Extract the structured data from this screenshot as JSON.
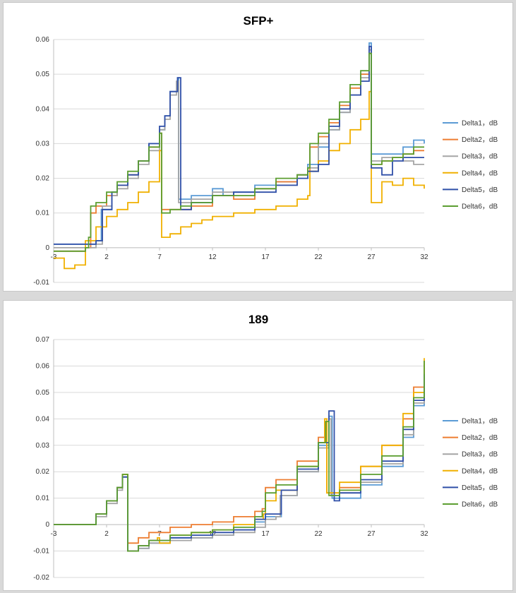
{
  "chart_data": [
    {
      "type": "line",
      "title": "SFP+",
      "xlim": [
        -3,
        32
      ],
      "ylim": [
        -0.01,
        0.06
      ],
      "xticks": [
        -3,
        2,
        7,
        12,
        17,
        22,
        27,
        32
      ],
      "yticks": [
        -0.01,
        0,
        0.01,
        0.02,
        0.03,
        0.04,
        0.05,
        0.06
      ],
      "ytick_labels": [
        "-0.01",
        "0",
        "0.01",
        "0.02",
        "0.03",
        "0.04",
        "0.05",
        "0.06"
      ],
      "xlabel": "",
      "ylabel": "",
      "grid": true,
      "legend": "right",
      "series": [
        {
          "name": "Delta1，dB",
          "color": "#5b9bd5",
          "x": [
            -3,
            0,
            1,
            1.5,
            2.5,
            3,
            4,
            5,
            6,
            7,
            7.5,
            8,
            8.7,
            8.8,
            10,
            12,
            13,
            14,
            16,
            18,
            20,
            21,
            22,
            23,
            24,
            25,
            26,
            26.8,
            27,
            28,
            29,
            30,
            31,
            32
          ],
          "y": [
            0.001,
            0.001,
            0.002,
            0.011,
            0.016,
            0.018,
            0.021,
            0.025,
            0.03,
            0.034,
            0.038,
            0.045,
            0.049,
            0.014,
            0.015,
            0.017,
            0.015,
            0.016,
            0.018,
            0.019,
            0.021,
            0.024,
            0.029,
            0.034,
            0.039,
            0.044,
            0.05,
            0.059,
            0.027,
            0.027,
            0.027,
            0.029,
            0.031,
            0.03
          ]
        },
        {
          "name": "Delta2，dB",
          "color": "#ed7d31",
          "x": [
            -3,
            0,
            0.5,
            1,
            2,
            3,
            4,
            5,
            6,
            7,
            7.2,
            8,
            9,
            10,
            12,
            14,
            16,
            18,
            20,
            21,
            21.2,
            22,
            23,
            24,
            25,
            26,
            26.8,
            27,
            28,
            29,
            30,
            31,
            32
          ],
          "y": [
            -0.001,
            0,
            0.01,
            0.012,
            0.015,
            0.018,
            0.021,
            0.025,
            0.029,
            0.033,
            0.011,
            0.011,
            0.011,
            0.012,
            0.015,
            0.014,
            0.017,
            0.019,
            0.021,
            0.022,
            0.029,
            0.032,
            0.036,
            0.041,
            0.046,
            0.05,
            0.056,
            0.024,
            0.025,
            0.026,
            0.027,
            0.028,
            0.028
          ]
        },
        {
          "name": "Delta3，dB",
          "color": "#a5a5a5",
          "x": [
            -3,
            0,
            1,
            1.6,
            2.5,
            3,
            4,
            5,
            6,
            7,
            7.5,
            8,
            8.6,
            8.8,
            10,
            12,
            14,
            16,
            18,
            20,
            21,
            22,
            23,
            24,
            25,
            26,
            26.8,
            27,
            28,
            29,
            30,
            31,
            32
          ],
          "y": [
            0,
            0,
            0.001,
            0.012,
            0.015,
            0.017,
            0.02,
            0.024,
            0.028,
            0.034,
            0.037,
            0.044,
            0.048,
            0.013,
            0.014,
            0.016,
            0.015,
            0.017,
            0.018,
            0.021,
            0.023,
            0.03,
            0.034,
            0.039,
            0.044,
            0.049,
            0.057,
            0.025,
            0.026,
            0.026,
            0.025,
            0.024,
            0.024
          ]
        },
        {
          "name": "Delta4，dB",
          "color": "#f0b000",
          "x": [
            -3,
            -2,
            -1,
            0,
            1,
            2,
            3,
            4,
            5,
            6,
            7,
            7.2,
            8,
            9,
            10,
            11,
            12,
            14,
            16,
            18,
            20,
            21,
            21.2,
            22,
            23,
            24,
            25,
            26,
            26.8,
            27,
            27.5,
            28,
            29,
            30,
            31,
            32
          ],
          "y": [
            -0.003,
            -0.006,
            -0.005,
            0.002,
            0.006,
            0.009,
            0.011,
            0.013,
            0.016,
            0.019,
            0.028,
            0.003,
            0.004,
            0.006,
            0.007,
            0.008,
            0.009,
            0.01,
            0.011,
            0.012,
            0.014,
            0.015,
            0.022,
            0.025,
            0.028,
            0.03,
            0.034,
            0.037,
            0.045,
            0.013,
            0.013,
            0.019,
            0.018,
            0.02,
            0.018,
            0.017
          ]
        },
        {
          "name": "Delta5，dB",
          "color": "#2f4fa8",
          "x": [
            -3,
            0,
            1,
            1.6,
            2.5,
            3,
            4,
            5,
            6,
            7,
            7.5,
            8,
            8.7,
            9,
            10,
            12,
            14,
            16,
            18,
            20,
            21,
            22,
            23,
            24,
            25,
            26,
            26.8,
            27,
            28,
            29,
            30,
            31,
            32
          ],
          "y": [
            0.001,
            0.001,
            0.002,
            0.011,
            0.016,
            0.018,
            0.021,
            0.025,
            0.03,
            0.035,
            0.038,
            0.045,
            0.049,
            0.011,
            0.013,
            0.015,
            0.016,
            0.016,
            0.018,
            0.02,
            0.022,
            0.024,
            0.035,
            0.04,
            0.044,
            0.048,
            0.058,
            0.023,
            0.021,
            0.025,
            0.026,
            0.026,
            0.026
          ]
        },
        {
          "name": "Delta6，dB",
          "color": "#5c9e31",
          "x": [
            -3,
            0,
            0.3,
            0.5,
            1,
            2,
            3,
            4,
            5,
            6,
            7,
            7.2,
            8,
            9,
            10,
            12,
            14,
            16,
            18,
            20,
            21,
            21.2,
            22,
            23,
            24,
            25,
            26,
            26.8,
            27,
            28,
            29,
            30,
            31,
            32
          ],
          "y": [
            -0.001,
            0,
            0.003,
            0.012,
            0.013,
            0.016,
            0.019,
            0.022,
            0.025,
            0.029,
            0.033,
            0.01,
            0.011,
            0.012,
            0.013,
            0.015,
            0.015,
            0.017,
            0.02,
            0.021,
            0.023,
            0.03,
            0.033,
            0.037,
            0.042,
            0.047,
            0.051,
            0.056,
            0.024,
            0.025,
            0.026,
            0.027,
            0.029,
            0.029
          ]
        }
      ]
    },
    {
      "type": "line",
      "title": "189",
      "xlim": [
        -3,
        32
      ],
      "ylim": [
        -0.02,
        0.07
      ],
      "xticks": [
        -3,
        2,
        7,
        12,
        17,
        22,
        27,
        32
      ],
      "yticks": [
        -0.02,
        -0.01,
        0,
        0.01,
        0.02,
        0.03,
        0.04,
        0.05,
        0.06,
        0.07
      ],
      "ytick_labels": [
        "-0.02",
        "-0.01",
        "0",
        "0.01",
        "0.02",
        "0.03",
        "0.04",
        "0.05",
        "0.06",
        "0.07"
      ],
      "xlabel": "",
      "ylabel": "",
      "grid": true,
      "legend": "right",
      "series": [
        {
          "name": "Delta1，dB",
          "color": "#5b9bd5",
          "x": [
            -3,
            0,
            1,
            2,
            3,
            3.5,
            4,
            5,
            6,
            8,
            10,
            12,
            14,
            16,
            17,
            18,
            18.5,
            20,
            22,
            23,
            23.3,
            24,
            26,
            28,
            30,
            31,
            32
          ],
          "y": [
            0,
            0,
            0.004,
            0.009,
            0.014,
            0.018,
            -0.01,
            -0.009,
            -0.007,
            -0.005,
            -0.005,
            -0.004,
            -0.002,
            0.001,
            0.003,
            0.003,
            0.011,
            0.02,
            0.03,
            0.041,
            0.01,
            0.01,
            0.015,
            0.022,
            0.033,
            0.045,
            0.057
          ]
        },
        {
          "name": "Delta2，dB",
          "color": "#ed7d31",
          "x": [
            -3,
            0,
            1,
            2,
            3,
            3.5,
            4,
            5,
            6,
            8,
            10,
            12,
            14,
            16,
            16.7,
            17,
            18,
            20,
            22,
            22.6,
            22.8,
            24,
            26,
            28,
            30,
            31,
            32
          ],
          "y": [
            0,
            0,
            0.004,
            0.009,
            0.014,
            0.019,
            -0.007,
            -0.005,
            -0.003,
            -0.001,
            0,
            0.001,
            0.003,
            0.005,
            0.006,
            0.014,
            0.017,
            0.024,
            0.033,
            0.039,
            0.012,
            0.014,
            0.022,
            0.03,
            0.04,
            0.052,
            0.062
          ]
        },
        {
          "name": "Delta3，dB",
          "color": "#a5a5a5",
          "x": [
            -3,
            0,
            1,
            2,
            3,
            3.5,
            4,
            5,
            6,
            8,
            10,
            12,
            14,
            16,
            17,
            18,
            18.4,
            20,
            22,
            23,
            23.2,
            24,
            26,
            28,
            30,
            31,
            32
          ],
          "y": [
            0,
            0,
            0.003,
            0.008,
            0.013,
            0.018,
            -0.01,
            -0.009,
            -0.007,
            -0.006,
            -0.005,
            -0.004,
            -0.003,
            -0.001,
            0.002,
            0.003,
            0.011,
            0.02,
            0.029,
            0.04,
            0.011,
            0.012,
            0.016,
            0.023,
            0.034,
            0.046,
            0.058
          ]
        },
        {
          "name": "Delta4，dB",
          "color": "#f0b000",
          "x": [
            -3,
            0,
            1,
            2,
            3,
            3.5,
            4,
            5,
            6,
            6.8,
            7,
            8,
            10,
            12,
            14,
            16,
            16.8,
            17,
            18,
            20,
            22,
            22.6,
            22.8,
            24,
            26,
            28,
            30,
            31,
            32
          ],
          "y": [
            0,
            0,
            0.004,
            0.009,
            0.014,
            0.019,
            -0.01,
            -0.008,
            -0.006,
            -0.005,
            -0.007,
            -0.004,
            -0.003,
            -0.002,
            0,
            0.002,
            0.004,
            0.009,
            0.013,
            0.022,
            0.031,
            0.04,
            0.012,
            0.016,
            0.022,
            0.03,
            0.042,
            0.05,
            0.063
          ]
        },
        {
          "name": "Delta5，dB",
          "color": "#2f4fa8",
          "x": [
            -3,
            0,
            1,
            2,
            3,
            3.5,
            4,
            5,
            6,
            8,
            10,
            12,
            14,
            16,
            17,
            18,
            18.5,
            20,
            22,
            23,
            23.5,
            24,
            26,
            28,
            30,
            31,
            32
          ],
          "y": [
            0,
            0,
            0.004,
            0.009,
            0.014,
            0.018,
            -0.01,
            -0.008,
            -0.006,
            -0.005,
            -0.004,
            -0.003,
            -0.002,
            0.002,
            0.004,
            0.004,
            0.013,
            0.021,
            0.031,
            0.043,
            0.009,
            0.012,
            0.017,
            0.024,
            0.036,
            0.047,
            0.057
          ]
        },
        {
          "name": "Delta6，dB",
          "color": "#5c9e31",
          "x": [
            -3,
            0,
            1,
            2,
            3,
            3.5,
            4,
            5,
            6,
            8,
            10,
            12,
            14,
            16,
            16.7,
            17,
            18,
            20,
            22,
            22.7,
            23,
            24,
            26,
            28,
            30,
            31,
            32
          ],
          "y": [
            0,
            0,
            0.004,
            0.009,
            0.014,
            0.019,
            -0.01,
            -0.008,
            -0.006,
            -0.004,
            -0.003,
            -0.002,
            -0.001,
            0.003,
            0.005,
            0.012,
            0.015,
            0.022,
            0.031,
            0.039,
            0.011,
            0.013,
            0.019,
            0.026,
            0.037,
            0.048,
            0.062
          ]
        }
      ]
    }
  ]
}
